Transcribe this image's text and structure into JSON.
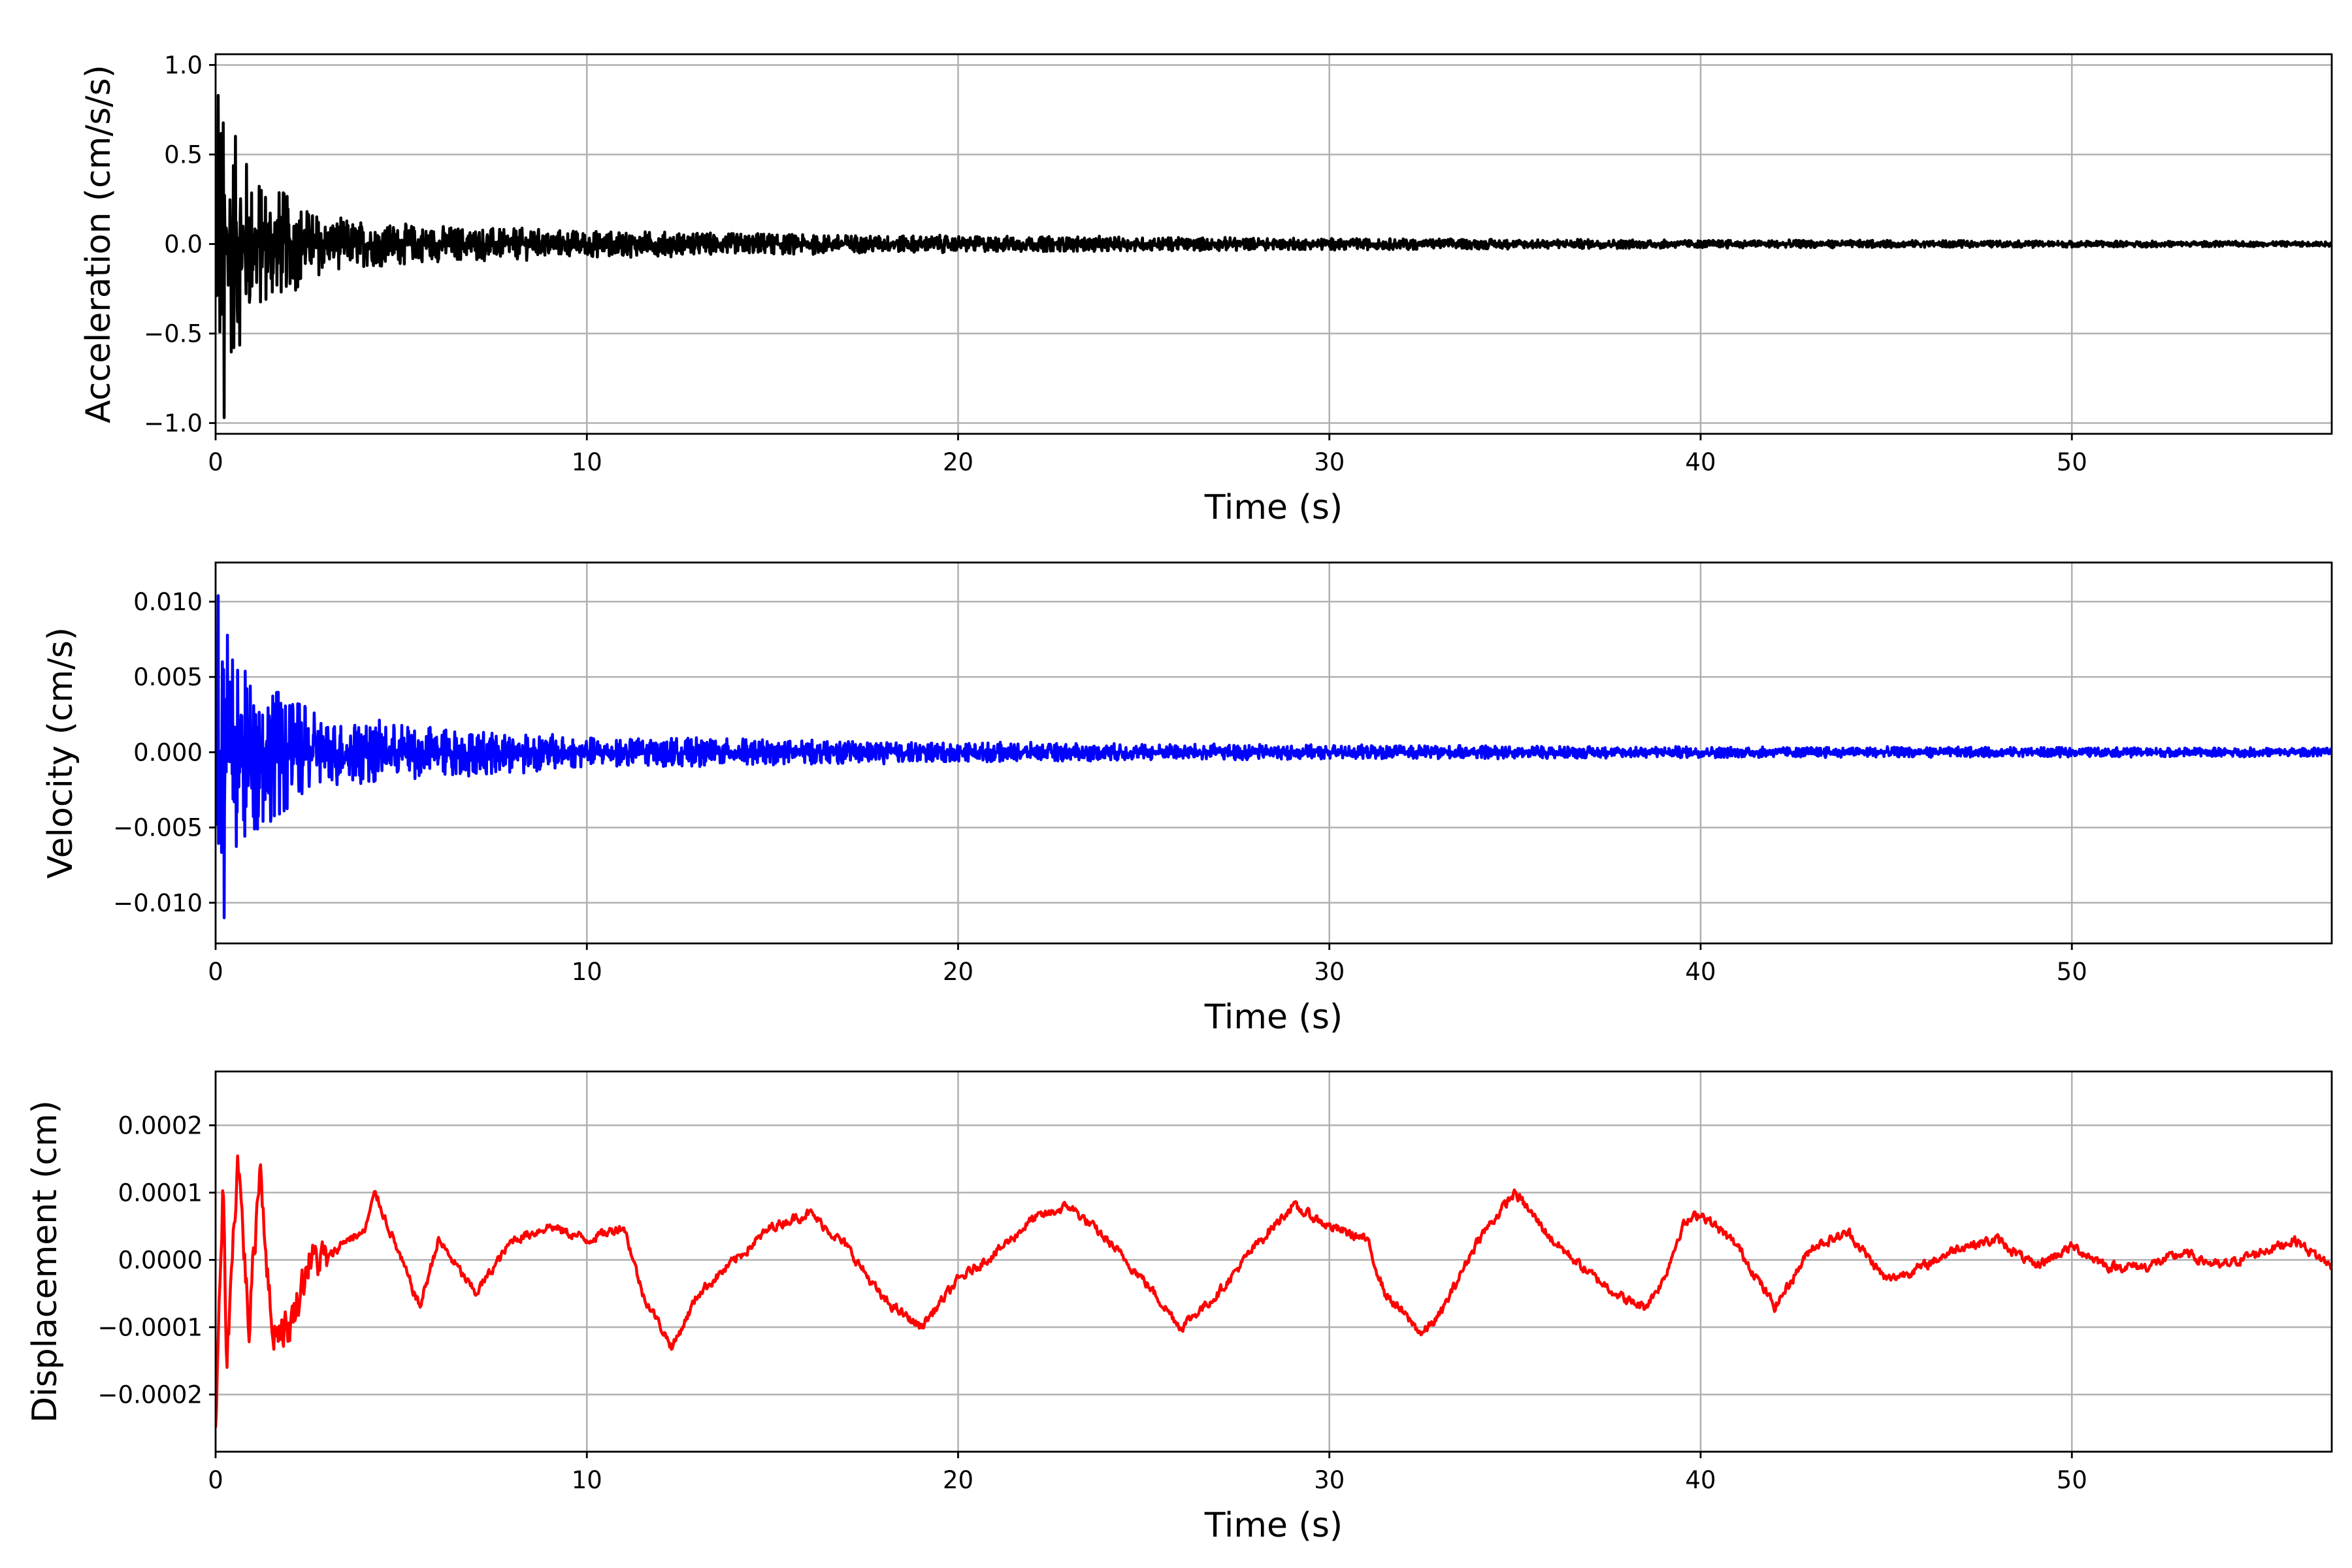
{
  "chart_data": [
    {
      "type": "line",
      "name": "acceleration",
      "ylabel": "Acceleration (cm/s/s)",
      "xlabel": "Time (s)",
      "color": "#000000",
      "xlim": [
        0,
        57
      ],
      "ylim": [
        -1.06,
        1.06
      ],
      "xticks": [
        0,
        10,
        20,
        30,
        40,
        50
      ],
      "xtick_labels": [
        "0",
        "10",
        "20",
        "30",
        "40",
        "50"
      ],
      "yticks": [
        -1.0,
        -0.5,
        0.0,
        0.5,
        1.0
      ],
      "ytick_labels": [
        "−1.0",
        "−0.5",
        "0.0",
        "0.5",
        "1.0"
      ],
      "grid": true,
      "envelope": {
        "t": [
          0,
          0.3,
          1,
          2,
          3,
          5,
          10,
          20,
          30,
          40,
          57
        ],
        "amplitude": [
          0.95,
          0.8,
          0.45,
          0.3,
          0.16,
          0.12,
          0.08,
          0.05,
          0.035,
          0.025,
          0.015
        ]
      },
      "peaks": {
        "max": 0.83,
        "min": -0.97
      }
    },
    {
      "type": "line",
      "name": "velocity",
      "ylabel": "Velocity (cm/s)",
      "xlabel": "Time (s)",
      "color": "#0000ff",
      "xlim": [
        0,
        57
      ],
      "ylim": [
        -0.0127,
        0.0126
      ],
      "xticks": [
        0,
        10,
        20,
        30,
        40,
        50
      ],
      "xtick_labels": [
        "0",
        "10",
        "20",
        "30",
        "40",
        "50"
      ],
      "yticks": [
        -0.01,
        -0.005,
        0.0,
        0.005,
        0.01
      ],
      "ytick_labels": [
        "−0.010",
        "−0.005",
        "0.000",
        "0.005",
        "0.010"
      ],
      "grid": true,
      "envelope": {
        "t": [
          0,
          0.3,
          1,
          2,
          3,
          5,
          10,
          20,
          30,
          40,
          57
        ],
        "amplitude": [
          0.011,
          0.0095,
          0.006,
          0.004,
          0.0025,
          0.002,
          0.0011,
          0.0007,
          0.0005,
          0.0004,
          0.0003
        ]
      },
      "peaks": {
        "max": 0.0104,
        "min": -0.011
      }
    },
    {
      "type": "line",
      "name": "displacement",
      "ylabel": "Displacement (cm)",
      "xlabel": "Time (s)",
      "color": "#ff0000",
      "xlim": [
        0,
        57
      ],
      "ylim": [
        -0.000285,
        0.00028
      ],
      "xticks": [
        0,
        10,
        20,
        30,
        40,
        50
      ],
      "xtick_labels": [
        "0",
        "10",
        "20",
        "30",
        "40",
        "50"
      ],
      "yticks": [
        -0.0002,
        -0.0001,
        0.0,
        0.0001,
        0.0002
      ],
      "ytick_labels": [
        "−0.0002",
        "−0.0001",
        "0.0000",
        "0.0001",
        "0.0002"
      ],
      "grid": true,
      "x": [
        0,
        0.2,
        0.3,
        0.6,
        0.9,
        1.2,
        1.5,
        2,
        2.5,
        3,
        3.5,
        4,
        4.3,
        5,
        5.5,
        6,
        7,
        8,
        9,
        10,
        11,
        11.5,
        12.3,
        13,
        14,
        15,
        16,
        17,
        18,
        19,
        20,
        21,
        22,
        23,
        24,
        25,
        26,
        27,
        28,
        29,
        30,
        31,
        31.5,
        32.5,
        33,
        34,
        35,
        36,
        37,
        38,
        38.5,
        39,
        39.5,
        40,
        41,
        42,
        43,
        44,
        45,
        46,
        47,
        48,
        49,
        50,
        51,
        52,
        53,
        54,
        55,
        56,
        57
      ],
      "y": [
        -0.00026,
        0.0001,
        -0.00015,
        0.00016,
        -0.0001,
        0.00015,
        -0.0001,
        -0.0001,
        0,
        0,
        3e-05,
        4e-05,
        0.0001,
        0,
        -7e-05,
        3e-05,
        -5e-05,
        3e-05,
        5e-05,
        3e-05,
        5e-05,
        -5e-05,
        -0.00013,
        -5e-05,
        0,
        5e-05,
        7e-05,
        2e-05,
        -6e-05,
        -0.0001,
        -3e-05,
        1e-05,
        6e-05,
        8e-05,
        3e-05,
        -3e-05,
        -0.0001,
        -5e-05,
        2e-05,
        8e-05,
        5e-05,
        3e-05,
        -5e-05,
        -0.00011,
        -8e-05,
        3e-05,
        0.0001,
        3e-05,
        -2e-05,
        -6e-05,
        -7e-05,
        -3e-05,
        5e-05,
        7e-05,
        2e-05,
        -7e-05,
        2e-05,
        4e-05,
        -3e-05,
        -1e-05,
        2e-05,
        3e-05,
        -1e-05,
        2e-05,
        -1e-05,
        -1e-05,
        1e-05,
        -1e-05,
        1e-05,
        3e-05,
        -1e-05
      ]
    }
  ]
}
